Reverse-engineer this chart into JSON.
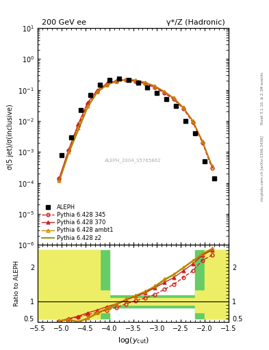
{
  "title_left": "200 GeV ee",
  "title_right": "γ*/Z (Hadronic)",
  "ylabel_main": "σ(5 jet)/σ(inclusive)",
  "ylabel_ratio": "Ratio to ALEPH",
  "xlabel": "log(y_{cut})",
  "right_label_top": "Rivet 3.1.10, ≥ 2.1M events",
  "right_label_bottom": "mcplots.cern.ch [arXiv:1306.3436]",
  "watermark": "ALEPH_2004_S5765862",
  "xlim": [
    -5.5,
    -1.5
  ],
  "ylim_main": [
    1e-06,
    10
  ],
  "aleph_x": [
    -5.0,
    -4.8,
    -4.6,
    -4.4,
    -4.2,
    -4.0,
    -3.8,
    -3.6,
    -3.4,
    -3.2,
    -3.0,
    -2.8,
    -2.6,
    -2.4,
    -2.2,
    -2.0,
    -1.8
  ],
  "aleph_y": [
    0.0008,
    0.003,
    0.022,
    0.07,
    0.15,
    0.21,
    0.23,
    0.21,
    0.17,
    0.12,
    0.08,
    0.05,
    0.03,
    0.01,
    0.004,
    0.0005,
    0.00014
  ],
  "py345_x": [
    -5.05,
    -4.85,
    -4.65,
    -4.45,
    -4.25,
    -4.05,
    -3.85,
    -3.65,
    -3.45,
    -3.25,
    -3.05,
    -2.85,
    -2.65,
    -2.45,
    -2.25,
    -2.05,
    -1.85
  ],
  "py345_y": [
    0.00014,
    0.0011,
    0.007,
    0.035,
    0.09,
    0.15,
    0.19,
    0.21,
    0.19,
    0.16,
    0.12,
    0.08,
    0.05,
    0.025,
    0.009,
    0.002,
    0.0003
  ],
  "py370_x": [
    -5.05,
    -4.85,
    -4.65,
    -4.45,
    -4.25,
    -4.05,
    -3.85,
    -3.65,
    -3.45,
    -3.25,
    -3.05,
    -2.85,
    -2.65,
    -2.45,
    -2.25,
    -2.05,
    -1.85
  ],
  "py370_y": [
    0.00014,
    0.0012,
    0.008,
    0.04,
    0.1,
    0.16,
    0.2,
    0.22,
    0.2,
    0.17,
    0.13,
    0.085,
    0.055,
    0.027,
    0.01,
    0.0022,
    0.00035
  ],
  "pyambt1_x": [
    -5.05,
    -4.85,
    -4.65,
    -4.45,
    -4.25,
    -4.05,
    -3.85,
    -3.65,
    -3.45,
    -3.25,
    -3.05,
    -2.85,
    -2.65,
    -2.45,
    -2.25,
    -2.05,
    -1.85
  ],
  "pyambt1_y": [
    0.00012,
    0.001,
    0.006,
    0.03,
    0.09,
    0.15,
    0.19,
    0.22,
    0.21,
    0.175,
    0.135,
    0.09,
    0.055,
    0.027,
    0.01,
    0.0022,
    0.00035
  ],
  "pyz2_x": [
    -5.05,
    -4.85,
    -4.65,
    -4.45,
    -4.25,
    -4.05,
    -3.85,
    -3.65,
    -3.45,
    -3.25,
    -3.05,
    -2.85,
    -2.65,
    -2.45,
    -2.25,
    -2.05,
    -1.85
  ],
  "pyz2_y": [
    0.00011,
    0.0009,
    0.005,
    0.028,
    0.085,
    0.145,
    0.19,
    0.22,
    0.21,
    0.175,
    0.135,
    0.09,
    0.055,
    0.027,
    0.01,
    0.0022,
    0.00035
  ],
  "ratio_345_y": [
    0.43,
    0.48,
    0.55,
    0.62,
    0.68,
    0.75,
    0.83,
    0.93,
    1.02,
    1.1,
    1.2,
    1.35,
    1.5,
    1.7,
    1.9,
    2.2,
    2.35
  ],
  "ratio_370_y": [
    0.43,
    0.5,
    0.57,
    0.67,
    0.75,
    0.85,
    0.93,
    1.05,
    1.15,
    1.25,
    1.4,
    1.55,
    1.7,
    1.9,
    2.1,
    2.35,
    2.5
  ],
  "ratio_ambt1_y": [
    0.43,
    0.48,
    0.42,
    0.52,
    0.68,
    0.8,
    0.93,
    1.07,
    1.18,
    1.3,
    1.45,
    1.65,
    1.8,
    2.0,
    2.2,
    2.4,
    2.55
  ],
  "ratio_z2_y": [
    0.43,
    0.46,
    0.4,
    0.5,
    0.65,
    0.78,
    0.91,
    1.05,
    1.16,
    1.28,
    1.42,
    1.62,
    1.78,
    1.98,
    2.18,
    2.38,
    2.53
  ],
  "color_345": "#cc2222",
  "color_370": "#cc2222",
  "color_ambt1": "#cc8800",
  "color_z2": "#888800",
  "color_aleph": "black",
  "color_green": "#66cc66",
  "color_yellow": "#eeee66"
}
